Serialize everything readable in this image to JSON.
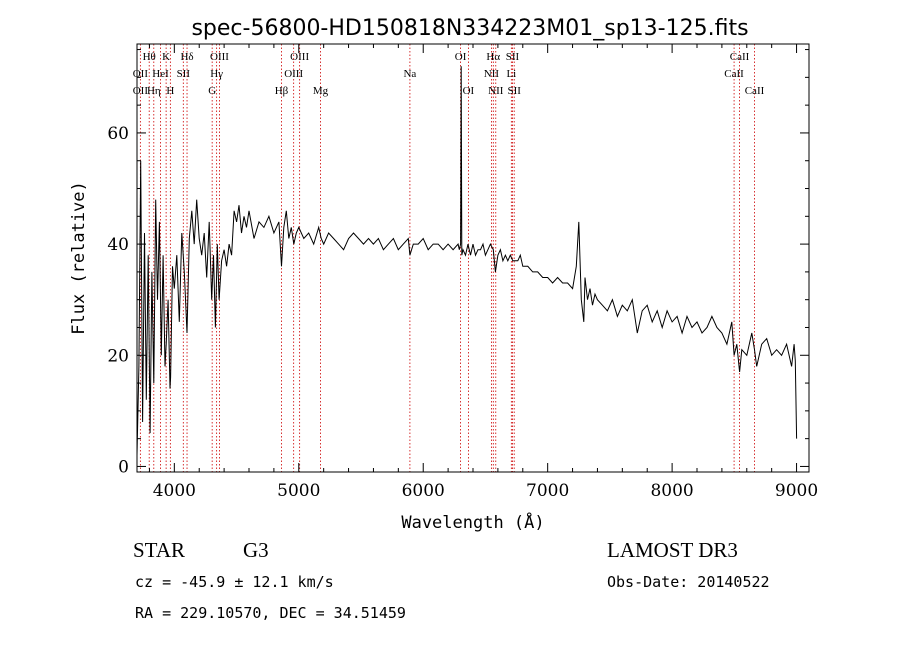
{
  "chart_data": {
    "type": "line",
    "title": "spec-56800-HD150818N334223M01_sp13-125.fits",
    "xlabel": "Wavelength (Å)",
    "ylabel": "Flux (relative)",
    "xlim": [
      3700,
      9100
    ],
    "ylim": [
      -1,
      76
    ],
    "xticks": [
      4000,
      5000,
      6000,
      7000,
      8000,
      9000
    ],
    "yticks": [
      0,
      20,
      40,
      60
    ],
    "series": [
      {
        "name": "spectrum",
        "x": [
          3700,
          3715,
          3730,
          3745,
          3760,
          3775,
          3790,
          3805,
          3820,
          3835,
          3850,
          3865,
          3880,
          3895,
          3910,
          3925,
          3935,
          3950,
          3965,
          3970,
          3985,
          4000,
          4020,
          4040,
          4060,
          4080,
          4102,
          4120,
          4140,
          4160,
          4180,
          4200,
          4220,
          4240,
          4260,
          4280,
          4300,
          4315,
          4330,
          4345,
          4360,
          4380,
          4400,
          4420,
          4440,
          4460,
          4480,
          4500,
          4520,
          4540,
          4560,
          4580,
          4600,
          4640,
          4680,
          4720,
          4760,
          4800,
          4840,
          4861,
          4880,
          4900,
          4920,
          4940,
          4960,
          4980,
          5000,
          5040,
          5080,
          5120,
          5160,
          5180,
          5200,
          5240,
          5280,
          5320,
          5360,
          5400,
          5440,
          5480,
          5520,
          5560,
          5600,
          5640,
          5680,
          5720,
          5760,
          5800,
          5840,
          5880,
          5893,
          5920,
          5960,
          6000,
          6040,
          6080,
          6120,
          6160,
          6200,
          6240,
          6280,
          6290,
          6300,
          6305,
          6310,
          6320,
          6340,
          6360,
          6380,
          6400,
          6420,
          6440,
          6460,
          6480,
          6500,
          6520,
          6540,
          6563,
          6580,
          6600,
          6620,
          6640,
          6660,
          6680,
          6700,
          6720,
          6740,
          6760,
          6780,
          6800,
          6840,
          6880,
          6920,
          6960,
          7000,
          7040,
          7080,
          7120,
          7160,
          7200,
          7230,
          7250,
          7270,
          7290,
          7300,
          7320,
          7340,
          7360,
          7380,
          7400,
          7440,
          7480,
          7520,
          7560,
          7600,
          7640,
          7680,
          7720,
          7760,
          7800,
          7840,
          7880,
          7920,
          7960,
          8000,
          8040,
          8080,
          8120,
          8160,
          8200,
          8240,
          8280,
          8320,
          8360,
          8400,
          8440,
          8480,
          8498,
          8520,
          8542,
          8560,
          8600,
          8640,
          8662,
          8680,
          8720,
          8760,
          8800,
          8840,
          8880,
          8920,
          8960,
          8980,
          8990,
          9000
        ],
        "y": [
          2,
          18,
          55,
          8,
          42,
          12,
          38,
          6,
          35,
          15,
          48,
          30,
          44,
          20,
          38,
          18,
          22,
          30,
          14,
          16,
          36,
          32,
          38,
          26,
          42,
          35,
          24,
          41,
          46,
          40,
          48,
          41,
          38,
          42,
          34,
          44,
          30,
          38,
          25,
          40,
          30,
          37,
          39,
          36,
          40,
          38,
          46,
          44,
          47,
          42,
          45,
          43,
          46,
          41,
          44,
          43,
          45,
          42,
          44,
          36,
          43,
          46,
          41,
          43,
          40,
          42,
          43,
          41,
          42,
          40,
          43,
          41,
          40,
          42,
          41,
          40,
          39,
          41,
          42,
          41,
          40,
          41,
          40,
          41,
          39,
          40,
          41,
          39,
          40,
          41,
          38,
          40,
          40,
          41,
          39,
          40,
          40,
          39,
          40,
          39,
          40,
          39,
          40,
          72,
          38,
          39,
          38,
          40,
          38,
          40,
          38,
          39,
          39,
          40,
          38,
          39,
          40,
          39,
          35,
          38,
          39,
          37,
          38,
          37,
          38,
          37,
          37,
          37,
          38,
          36,
          36,
          35,
          35,
          34,
          34,
          33,
          34,
          33,
          33,
          32,
          36,
          44,
          30,
          26,
          34,
          30,
          32,
          29,
          31,
          30,
          29,
          28,
          30,
          27,
          29,
          28,
          30,
          24,
          28,
          29,
          26,
          28,
          25,
          28,
          26,
          27,
          24,
          27,
          25,
          26,
          24,
          25,
          27,
          25,
          24,
          22,
          26,
          20,
          22,
          17,
          21,
          20,
          24,
          21,
          18,
          22,
          23,
          20,
          21,
          20,
          22,
          18,
          22,
          19,
          5
        ]
      }
    ],
    "line_markers": [
      {
        "label": "Hθ",
        "x": 3798,
        "row": 0
      },
      {
        "label": "K",
        "x": 3934,
        "row": 0
      },
      {
        "label": "Hδ",
        "x": 4102,
        "row": 0
      },
      {
        "label": "OIII",
        "x": 4363,
        "row": 0
      },
      {
        "label": "OIII",
        "x": 5007,
        "row": 0
      },
      {
        "label": "Na",
        "x": 5893,
        "row": 1
      },
      {
        "label": "OI",
        "x": 6300,
        "row": 0
      },
      {
        "label": "Hα",
        "x": 6563,
        "row": 0
      },
      {
        "label": "SII",
        "x": 6717,
        "row": 0
      },
      {
        "label": "CaII",
        "x": 8542,
        "row": 0
      },
      {
        "label": "OII",
        "x": 3727,
        "row": 1
      },
      {
        "label": "HeI",
        "x": 3889,
        "row": 1
      },
      {
        "label": "SII",
        "x": 4072,
        "row": 1
      },
      {
        "label": "Hγ",
        "x": 4340,
        "row": 1
      },
      {
        "label": "OIII",
        "x": 4959,
        "row": 1
      },
      {
        "label": "NII",
        "x": 6548,
        "row": 1
      },
      {
        "label": "Li",
        "x": 6708,
        "row": 1
      },
      {
        "label": "CaII",
        "x": 8498,
        "row": 1
      },
      {
        "label": "OII",
        "x": 3727,
        "row": 2
      },
      {
        "label": "Hη",
        "x": 3835,
        "row": 2
      },
      {
        "label": "H",
        "x": 3968,
        "row": 2
      },
      {
        "label": "G",
        "x": 4304,
        "row": 2
      },
      {
        "label": "Hβ",
        "x": 4861,
        "row": 2
      },
      {
        "label": "Mg",
        "x": 5175,
        "row": 2
      },
      {
        "label": "OI",
        "x": 6363,
        "row": 2
      },
      {
        "label": "NII",
        "x": 6583,
        "row": 2
      },
      {
        "label": "SII",
        "x": 6731,
        "row": 2
      },
      {
        "label": "CaII",
        "x": 8662,
        "row": 2
      }
    ],
    "marker_color": "#cc0000",
    "line_color": "#000000"
  },
  "info": {
    "class": "STAR",
    "subclass": "G3",
    "survey": "LAMOST DR3",
    "cz": "cz = -45.9 ± 12.1 km/s",
    "obs_date": "Obs-Date: 20140522",
    "radec": "RA = 229.10570, DEC =  34.51459"
  }
}
